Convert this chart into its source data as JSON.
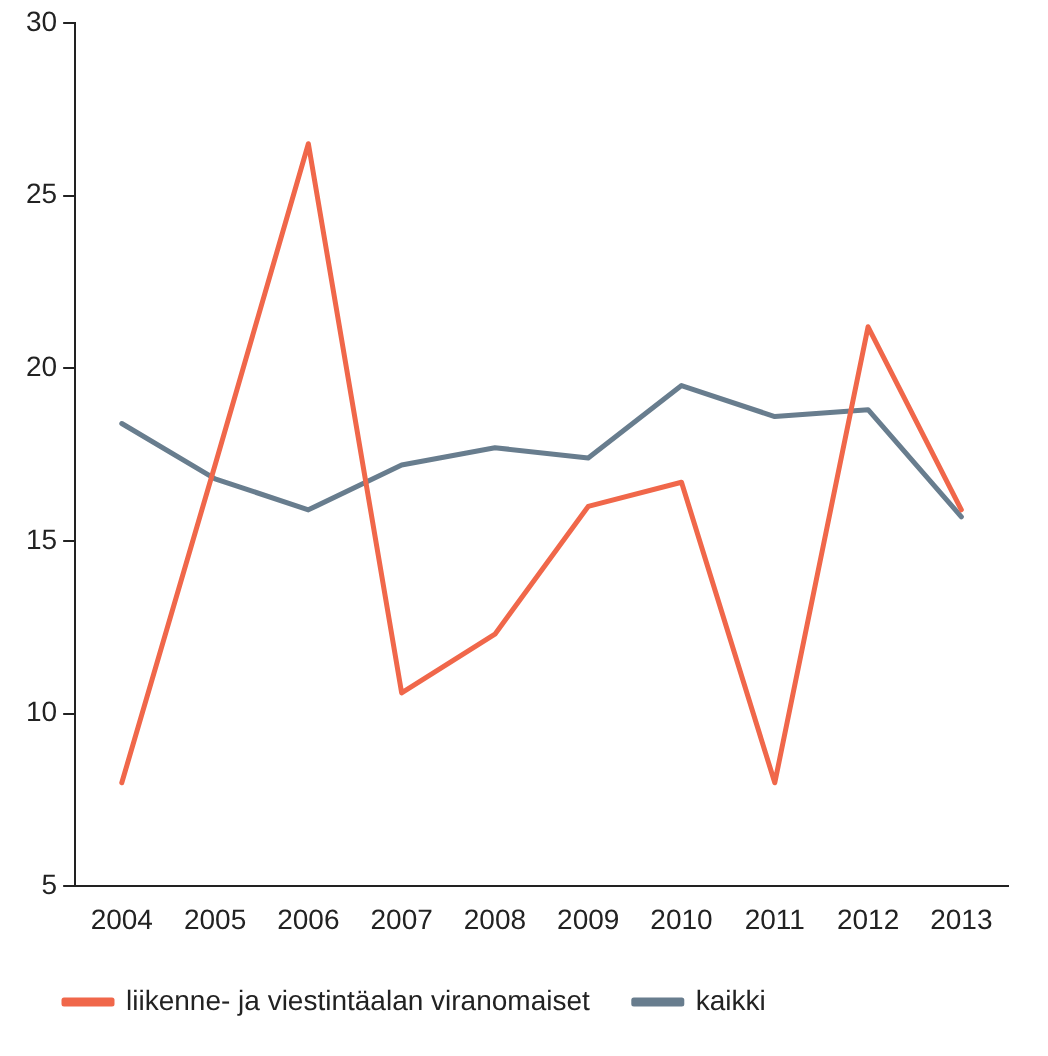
{
  "chart_data": {
    "type": "line",
    "categories": [
      "2004",
      "2005",
      "2006",
      "2007",
      "2008",
      "2009",
      "2010",
      "2011",
      "2012",
      "2013"
    ],
    "series": [
      {
        "name": "liikenne- ja viestintäalan viranomaiset",
        "color": "#f0674a",
        "values": [
          8.0,
          17.2,
          26.5,
          10.6,
          12.3,
          16.0,
          16.7,
          8.0,
          21.2,
          15.9
        ]
      },
      {
        "name": "kaikki",
        "color": "#687d8e",
        "values": [
          18.4,
          16.8,
          15.9,
          17.2,
          17.7,
          17.4,
          19.5,
          18.6,
          18.8,
          15.7
        ]
      }
    ],
    "ylim": [
      5,
      30
    ],
    "yticks": [
      5,
      10,
      15,
      20,
      25,
      30
    ],
    "grid": false,
    "legend": "bottom",
    "marker": "none",
    "line_style": "solid"
  }
}
